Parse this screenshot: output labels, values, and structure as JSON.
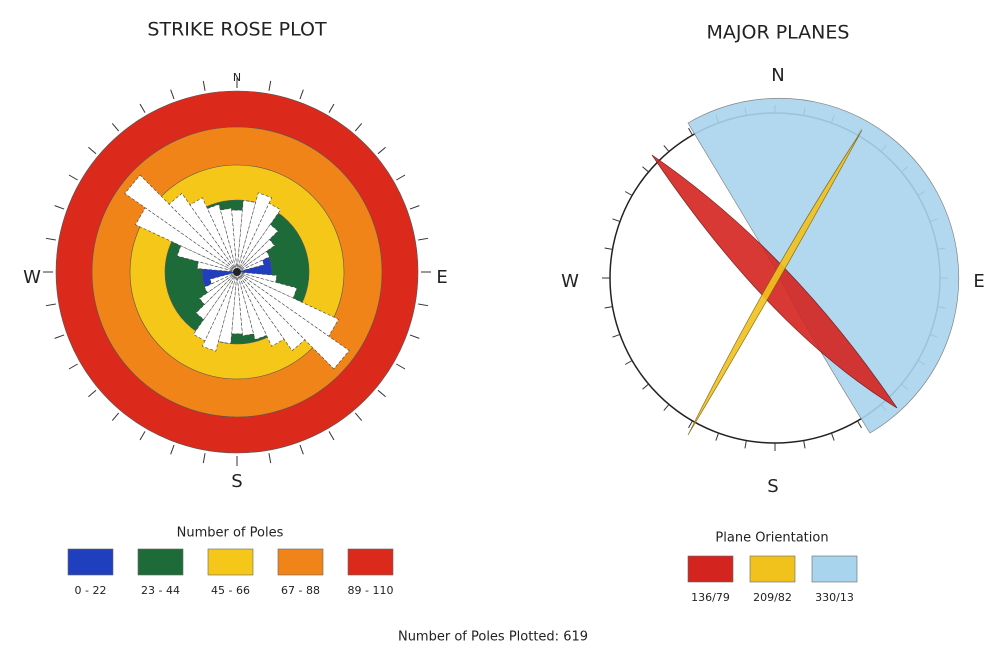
{
  "left": {
    "title": "STRIKE ROSE PLOT",
    "compass": {
      "n": "N",
      "s": "S",
      "w": "W",
      "e": "E"
    },
    "legend": {
      "title": "Number of Poles",
      "items": [
        {
          "label": "0 - 22",
          "color": "#1f3fbf"
        },
        {
          "label": "23 - 44",
          "color": "#1e6b3a"
        },
        {
          "label": "45 - 66",
          "color": "#f4c718"
        },
        {
          "label": "67 - 88",
          "color": "#f08418"
        },
        {
          "label": "89 - 110",
          "color": "#db2a1c"
        }
      ]
    }
  },
  "right": {
    "title": "MAJOR PLANES",
    "compass": {
      "n": "N",
      "s": "S",
      "w": "W",
      "e": "E"
    },
    "legend": {
      "title": "Plane Orientation",
      "items": [
        {
          "label": "136/79",
          "color": "#d42420"
        },
        {
          "label": "209/82",
          "color": "#f2c21c"
        },
        {
          "label": "330/13",
          "color": "#a9d4ee"
        }
      ]
    }
  },
  "footer": "Number of Poles Plotted: 619"
}
